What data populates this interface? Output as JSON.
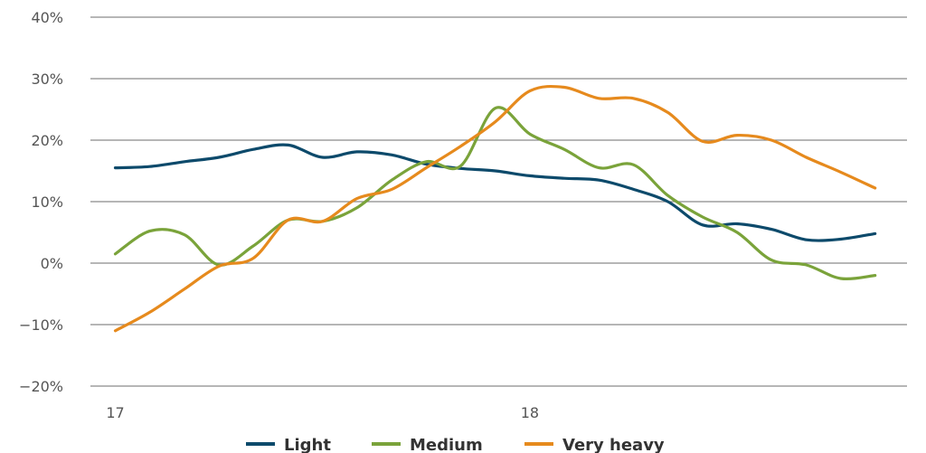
{
  "chart_data": {
    "type": "line",
    "title": "",
    "xlabel": "",
    "ylabel": "",
    "x_ticks": [
      {
        "value": 17,
        "label": "17"
      },
      {
        "value": 18,
        "label": "18"
      }
    ],
    "xlim": [
      16.94,
      18.91
    ],
    "ylim": [
      -20,
      40
    ],
    "y_ticks": [
      {
        "value": 40,
        "label": "40%"
      },
      {
        "value": 30,
        "label": "30%"
      },
      {
        "value": 20,
        "label": "20%"
      },
      {
        "value": 10,
        "label": "10%"
      },
      {
        "value": 0,
        "label": "0%"
      },
      {
        "value": -10,
        "label": "−10%"
      },
      {
        "value": -20,
        "label": "−20%"
      }
    ],
    "grid": "horizontal",
    "legend_position": "bottom",
    "series": [
      {
        "name": "Light",
        "color": "#0d4a6b",
        "points": [
          [
            17.0,
            15.5
          ],
          [
            17.083,
            15.7
          ],
          [
            17.167,
            16.5
          ],
          [
            17.25,
            17.2
          ],
          [
            17.333,
            18.5
          ],
          [
            17.417,
            19.2
          ],
          [
            17.5,
            17.2
          ],
          [
            17.583,
            18.1
          ],
          [
            17.667,
            17.6
          ],
          [
            17.75,
            16.1
          ],
          [
            17.833,
            15.4
          ],
          [
            17.917,
            15.0
          ],
          [
            18.0,
            14.2
          ],
          [
            18.083,
            13.8
          ],
          [
            18.167,
            13.5
          ],
          [
            18.25,
            12.0
          ],
          [
            18.333,
            10.0
          ],
          [
            18.417,
            6.2
          ],
          [
            18.5,
            6.4
          ],
          [
            18.583,
            5.5
          ],
          [
            18.667,
            3.8
          ],
          [
            18.75,
            3.9
          ],
          [
            18.833,
            4.8
          ]
        ]
      },
      {
        "name": "Medium",
        "color": "#7aa33a",
        "points": [
          [
            17.0,
            1.5
          ],
          [
            17.083,
            5.2
          ],
          [
            17.167,
            4.6
          ],
          [
            17.25,
            -0.3
          ],
          [
            17.333,
            2.8
          ],
          [
            17.417,
            7.0
          ],
          [
            17.5,
            6.8
          ],
          [
            17.583,
            9.0
          ],
          [
            17.667,
            13.5
          ],
          [
            17.75,
            16.5
          ],
          [
            17.833,
            15.8
          ],
          [
            17.917,
            25.2
          ],
          [
            18.0,
            21.0
          ],
          [
            18.083,
            18.5
          ],
          [
            18.167,
            15.5
          ],
          [
            18.25,
            16.0
          ],
          [
            18.333,
            11.0
          ],
          [
            18.417,
            7.5
          ],
          [
            18.5,
            5.0
          ],
          [
            18.583,
            0.5
          ],
          [
            18.667,
            -0.3
          ],
          [
            18.75,
            -2.5
          ],
          [
            18.833,
            -2.0
          ]
        ]
      },
      {
        "name": "Very heavy",
        "color": "#e68a1d",
        "points": [
          [
            17.0,
            -11.0
          ],
          [
            17.083,
            -8.0
          ],
          [
            17.167,
            -4.2
          ],
          [
            17.25,
            -0.5
          ],
          [
            17.333,
            0.8
          ],
          [
            17.417,
            7.0
          ],
          [
            17.5,
            6.8
          ],
          [
            17.583,
            10.5
          ],
          [
            17.667,
            12.0
          ],
          [
            17.75,
            15.5
          ],
          [
            17.833,
            19.0
          ],
          [
            17.917,
            23.0
          ],
          [
            18.0,
            28.0
          ],
          [
            18.083,
            28.6
          ],
          [
            18.167,
            26.8
          ],
          [
            18.25,
            26.8
          ],
          [
            18.333,
            24.5
          ],
          [
            18.417,
            19.8
          ],
          [
            18.5,
            20.8
          ],
          [
            18.583,
            20.0
          ],
          [
            18.667,
            17.2
          ],
          [
            18.75,
            14.8
          ],
          [
            18.833,
            12.2
          ]
        ]
      }
    ]
  }
}
